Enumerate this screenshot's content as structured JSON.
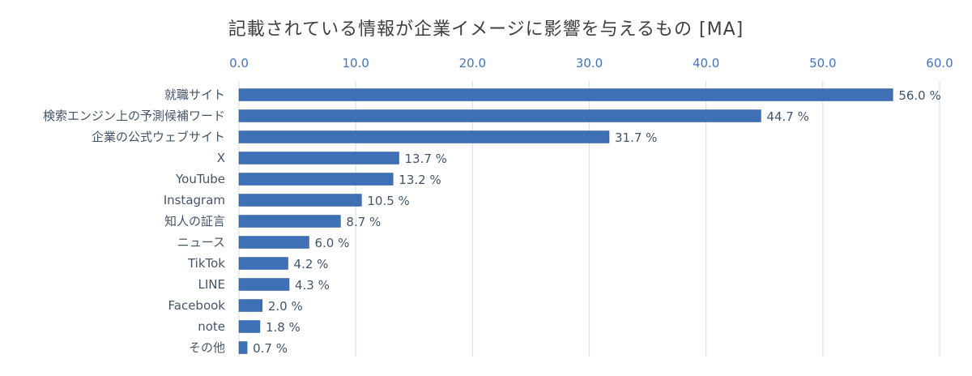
{
  "chart_data": {
    "type": "bar",
    "orientation": "horizontal",
    "title": "記載されている情報が企業イメージに影響を与えるもの [MA]",
    "categories": [
      "就職サイト",
      "検索エンジン上の予測候補ワード",
      "企業の公式ウェブサイト",
      "X",
      "YouTube",
      "Instagram",
      "知人の証言",
      "ニュース",
      "TikTok",
      "LINE",
      "Facebook",
      "note",
      "その他"
    ],
    "values": [
      56.0,
      44.7,
      31.7,
      13.7,
      13.2,
      10.5,
      8.7,
      6.0,
      4.2,
      4.3,
      2.0,
      1.8,
      0.7
    ],
    "value_labels": [
      "56.0 %",
      "44.7 %",
      "31.7 %",
      "13.7 %",
      "13.2 %",
      "10.5 %",
      "8.7 %",
      "6.0 %",
      "4.2 %",
      "4.3 %",
      "2.0 %",
      "1.8 %",
      "0.7 %"
    ],
    "xlim": [
      0,
      60
    ],
    "ticks": [
      0,
      10,
      20,
      30,
      40,
      50,
      60
    ],
    "tick_labels": [
      "0.0",
      "10.0",
      "20.0",
      "30.0",
      "40.0",
      "50.0",
      "60.0"
    ],
    "axis_position": "top",
    "grid": true,
    "legend": "none",
    "colors": {
      "bar": "#3f6fb5",
      "bar_edge": "#2e5a9a",
      "grid": "#d6e2f0",
      "tick_text": "#4472c4",
      "label_text": "#44546a",
      "title_text": "#404040"
    }
  }
}
